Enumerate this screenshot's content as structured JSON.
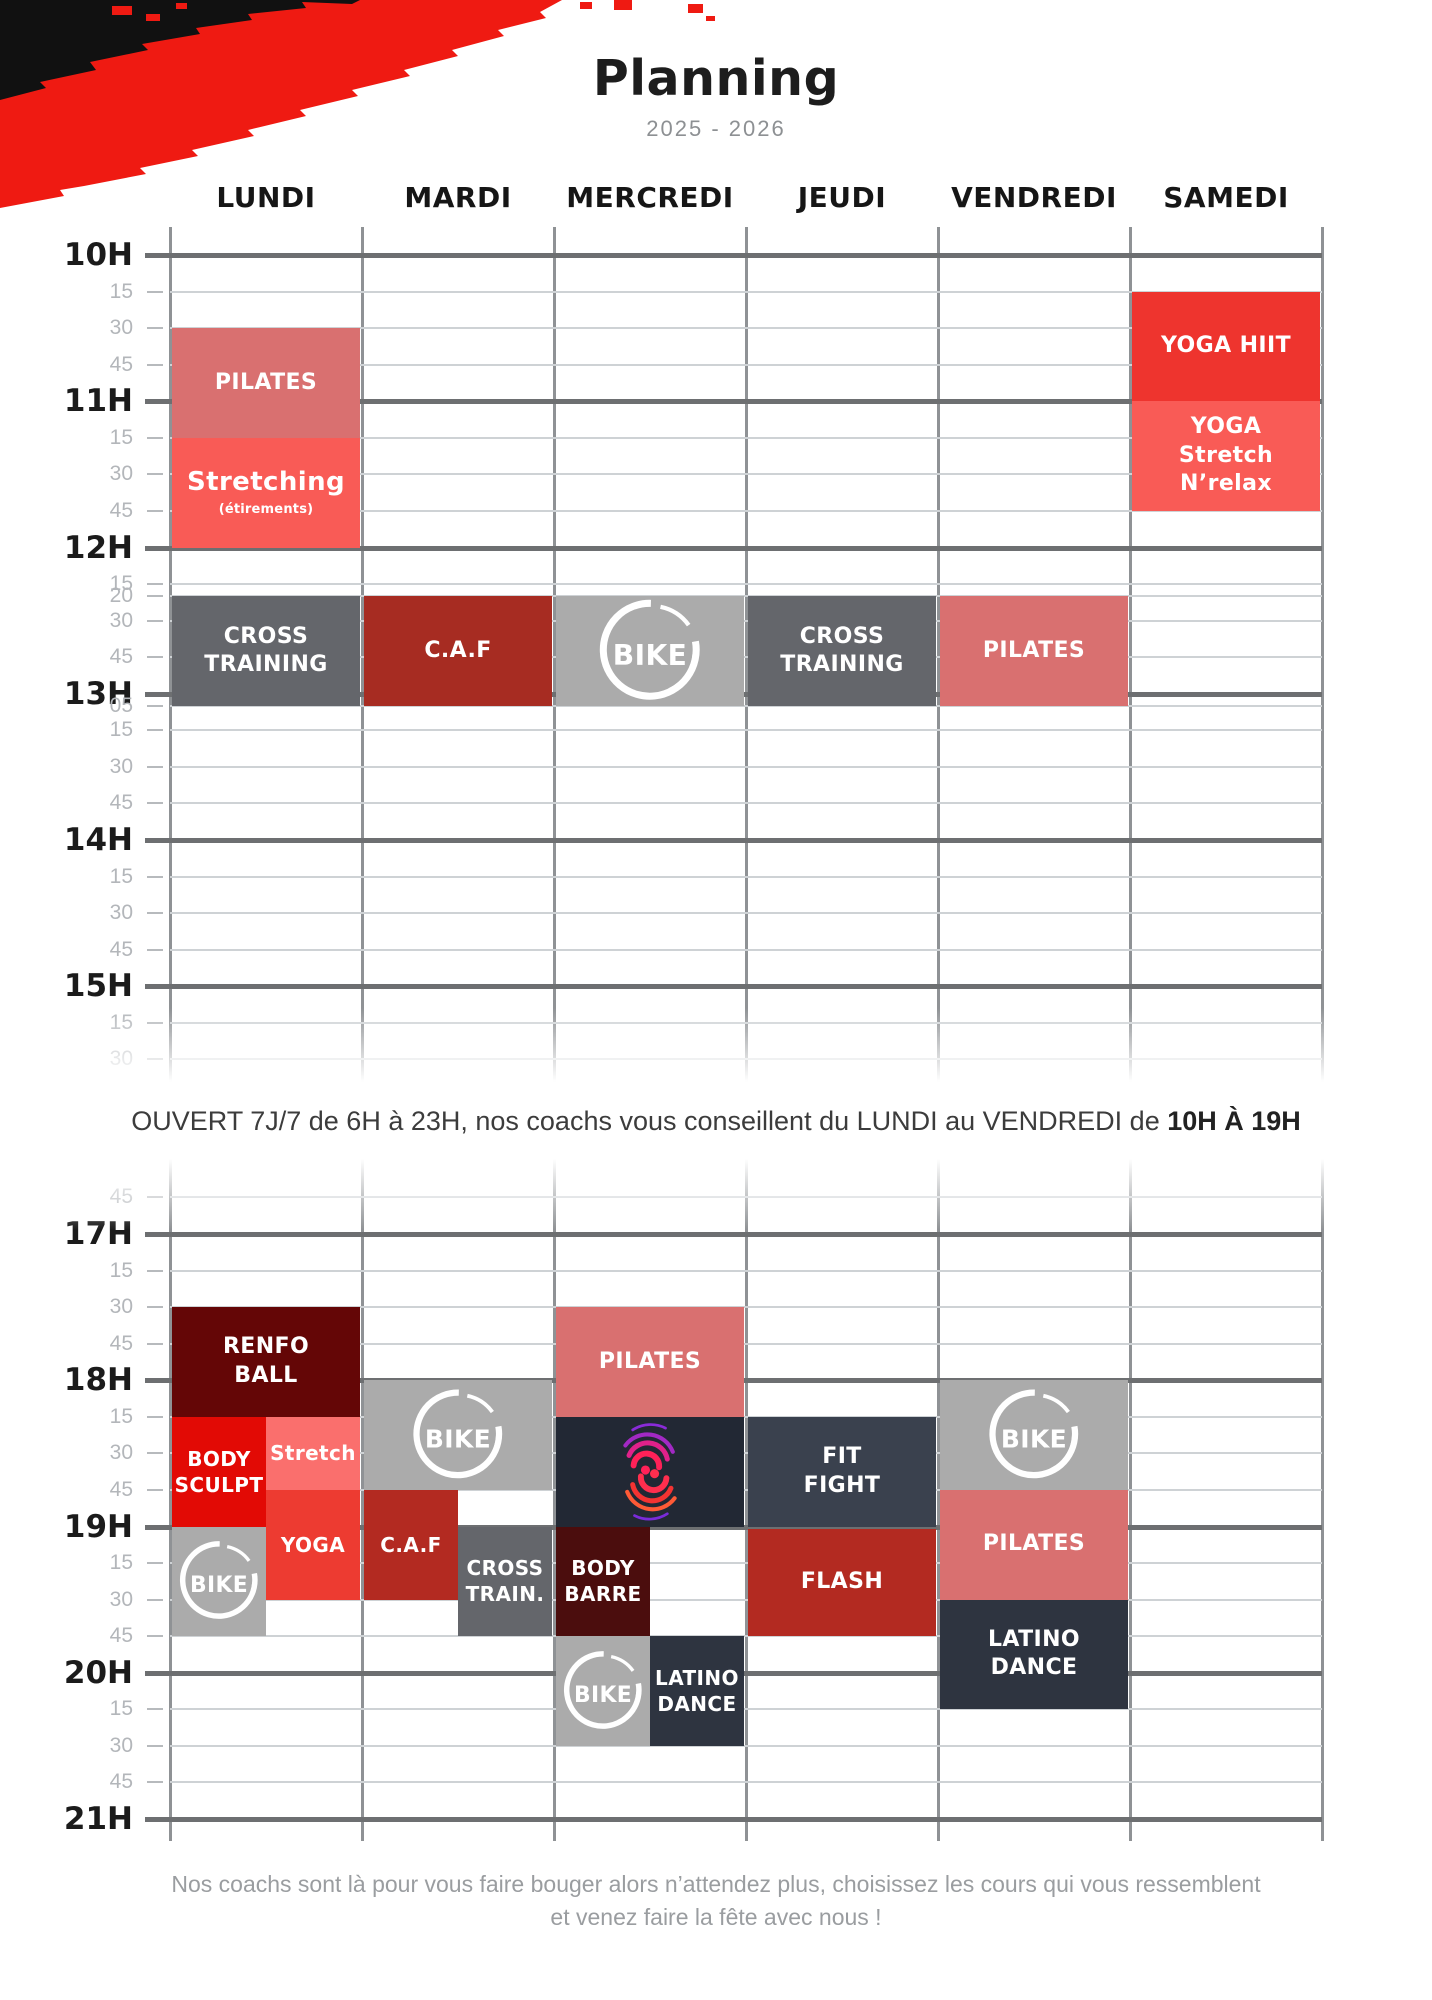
{
  "page": {
    "title": "Planning",
    "subtitle": "2025 - 2026",
    "days": [
      "LUNDI",
      "MARDI",
      "MERCREDI",
      "JEUDI",
      "VENDREDI",
      "SAMEDI"
    ],
    "open_note": {
      "text": "OUVERT 7J/7 de 6H à 23H, nos coachs vous conseillent du LUNDI au VENDREDI de ",
      "bold": "10H À 19H"
    },
    "footer": {
      "line1": "Nos coachs sont là pour vous faire bouger alors n’attendez plus, choisissez les cours qui vous ressemblent",
      "line2": "et venez faire la fête avec nous !"
    }
  },
  "icons": {
    "bike_label": "BIKE",
    "bike_icon": "bike-wheel-icon",
    "swirl_icon": "swirl-logo-icon",
    "brush_icon": "brush-stroke-decoration"
  },
  "colors": {
    "pilates": "#d97070",
    "salmon": "#f95b56",
    "salmon_light": "#fa6f6d",
    "red_bright": "#ee342e",
    "yoga_red": "#ed3b31",
    "body_red": "#e20a05",
    "brick": "#a72c22",
    "brick2": "#b32a21",
    "gray_dark": "#64666b",
    "gray_bike": "#ababab",
    "maroon": "#640606",
    "maroon2": "#4b0d0d",
    "navy_logo": "#222834",
    "navy_fit": "#3a414e",
    "navy_latino": "#2e3440",
    "brush_red": "#ef1a12",
    "brush_black": "#111111"
  },
  "schedule": {
    "grid_morning": {
      "ticks": [
        {
          "t": "10H",
          "m": 600,
          "h": 1
        },
        {
          "t": "15",
          "m": 615
        },
        {
          "t": "30",
          "m": 630
        },
        {
          "t": "45",
          "m": 645
        },
        {
          "t": "11H",
          "m": 660,
          "h": 1
        },
        {
          "t": "15",
          "m": 675
        },
        {
          "t": "30",
          "m": 690
        },
        {
          "t": "45",
          "m": 705
        },
        {
          "t": "12H",
          "m": 720,
          "h": 1
        },
        {
          "t": "15",
          "m": 735
        },
        {
          "t": "20",
          "m": 740
        },
        {
          "t": "30",
          "m": 750
        },
        {
          "t": "45",
          "m": 765
        },
        {
          "t": "13H",
          "m": 780,
          "h": 1
        },
        {
          "t": "05",
          "m": 785
        },
        {
          "t": "15",
          "m": 795
        },
        {
          "t": "30",
          "m": 810
        },
        {
          "t": "45",
          "m": 825
        },
        {
          "t": "14H",
          "m": 840,
          "h": 1
        },
        {
          "t": "15",
          "m": 855
        },
        {
          "t": "30",
          "m": 870
        },
        {
          "t": "45",
          "m": 885
        },
        {
          "t": "15H",
          "m": 900,
          "h": 1
        },
        {
          "t": "15",
          "m": 915
        },
        {
          "t": "30",
          "m": 930
        }
      ],
      "blocks": [
        {
          "day": 0,
          "start": 630,
          "end": 675,
          "label": [
            "PILATES"
          ],
          "color": "pilates"
        },
        {
          "day": 0,
          "start": 675,
          "end": 720,
          "label": [
            "Stretching"
          ],
          "sub": "(étirements)",
          "color": "salmon"
        },
        {
          "day": 0,
          "start": 740,
          "end": 785,
          "label": [
            "CROSS",
            "TRAINING"
          ],
          "color": "gray_dark"
        },
        {
          "day": 1,
          "start": 740,
          "end": 785,
          "label": [
            "C.A.F"
          ],
          "color": "brick"
        },
        {
          "day": 2,
          "start": 740,
          "end": 785,
          "label": [],
          "logo": "bike",
          "logo_size": 108,
          "color": "gray_bike"
        },
        {
          "day": 3,
          "start": 740,
          "end": 785,
          "label": [
            "CROSS",
            "TRAINING"
          ],
          "color": "gray_dark"
        },
        {
          "day": 4,
          "start": 740,
          "end": 785,
          "label": [
            "PILATES"
          ],
          "color": "pilates"
        },
        {
          "day": 5,
          "start": 615,
          "end": 660,
          "label": [
            "YOGA HIIT"
          ],
          "color": "red_bright"
        },
        {
          "day": 5,
          "start": 660,
          "end": 705,
          "label": [
            "YOGA",
            "Stretch",
            "N’relax"
          ],
          "color": "salmon"
        }
      ]
    },
    "grid_evening": {
      "ticks": [
        {
          "t": "45",
          "m": 1005
        },
        {
          "t": "17H",
          "m": 1020,
          "h": 1
        },
        {
          "t": "15",
          "m": 1035
        },
        {
          "t": "30",
          "m": 1050
        },
        {
          "t": "45",
          "m": 1065
        },
        {
          "t": "18H",
          "m": 1080,
          "h": 1
        },
        {
          "t": "15",
          "m": 1095
        },
        {
          "t": "30",
          "m": 1110
        },
        {
          "t": "45",
          "m": 1125
        },
        {
          "t": "19H",
          "m": 1140,
          "h": 1
        },
        {
          "t": "15",
          "m": 1155
        },
        {
          "t": "30",
          "m": 1170
        },
        {
          "t": "45",
          "m": 1185
        },
        {
          "t": "20H",
          "m": 1200,
          "h": 1
        },
        {
          "t": "15",
          "m": 1215
        },
        {
          "t": "30",
          "m": 1230
        },
        {
          "t": "45",
          "m": 1245
        },
        {
          "t": "21H",
          "m": 1260,
          "h": 1
        }
      ],
      "blocks": [
        {
          "day": 0,
          "start": 1050,
          "end": 1095,
          "label": [
            "RENFO",
            "BALL"
          ],
          "color": "maroon"
        },
        {
          "day": 0,
          "start": 1095,
          "end": 1140,
          "pos": "left",
          "label": [
            "BODY",
            "SCULPT"
          ],
          "color": "body_red"
        },
        {
          "day": 0,
          "start": 1095,
          "end": 1125,
          "pos": "right",
          "label": [
            "Stretch"
          ],
          "color": "salmon_light"
        },
        {
          "day": 0,
          "start": 1125,
          "end": 1170,
          "pos": "right",
          "label": [
            "YOGA"
          ],
          "color": "yoga_red"
        },
        {
          "day": 0,
          "start": 1140,
          "end": 1185,
          "pos": "left",
          "label": [],
          "logo": "bike",
          "logo_size": 84,
          "color": "gray_bike"
        },
        {
          "day": 1,
          "start": 1080,
          "end": 1125,
          "label": [],
          "logo": "bike",
          "logo_size": 96,
          "color": "gray_bike"
        },
        {
          "day": 1,
          "start": 1125,
          "end": 1170,
          "pos": "left",
          "label": [
            "C.A.F"
          ],
          "color": "brick2"
        },
        {
          "day": 1,
          "start": 1140,
          "end": 1185,
          "pos": "right",
          "label": [
            "CROSS",
            "TRAIN."
          ],
          "color": "gray_dark"
        },
        {
          "day": 2,
          "start": 1050,
          "end": 1095,
          "label": [
            "PILATES"
          ],
          "color": "pilates"
        },
        {
          "day": 2,
          "start": 1095,
          "end": 1140,
          "label": [],
          "logo": "swirl",
          "color": "navy_logo"
        },
        {
          "day": 2,
          "start": 1140,
          "end": 1185,
          "pos": "left",
          "label": [
            "BODY",
            "BARRE"
          ],
          "color": "maroon2"
        },
        {
          "day": 2,
          "start": 1185,
          "end": 1230,
          "pos": "left",
          "label": [],
          "logo": "bike",
          "logo_size": 84,
          "color": "gray_bike"
        },
        {
          "day": 2,
          "start": 1185,
          "end": 1230,
          "pos": "right",
          "label": [
            "LATINO",
            "DANCE"
          ],
          "color": "navy_latino"
        },
        {
          "day": 3,
          "start": 1095,
          "end": 1140,
          "label": [
            "FIT",
            "FIGHT"
          ],
          "color": "navy_fit"
        },
        {
          "day": 3,
          "start": 1141,
          "end": 1185,
          "label": [
            "FLASH"
          ],
          "color": "brick2"
        },
        {
          "day": 4,
          "start": 1080,
          "end": 1125,
          "label": [],
          "logo": "bike",
          "logo_size": 96,
          "color": "gray_bike"
        },
        {
          "day": 4,
          "start": 1125,
          "end": 1170,
          "label": [
            "PILATES"
          ],
          "color": "pilates"
        },
        {
          "day": 4,
          "start": 1170,
          "end": 1215,
          "label": [
            "LATINO",
            "DANCE"
          ],
          "color": "navy_latino"
        }
      ]
    }
  }
}
